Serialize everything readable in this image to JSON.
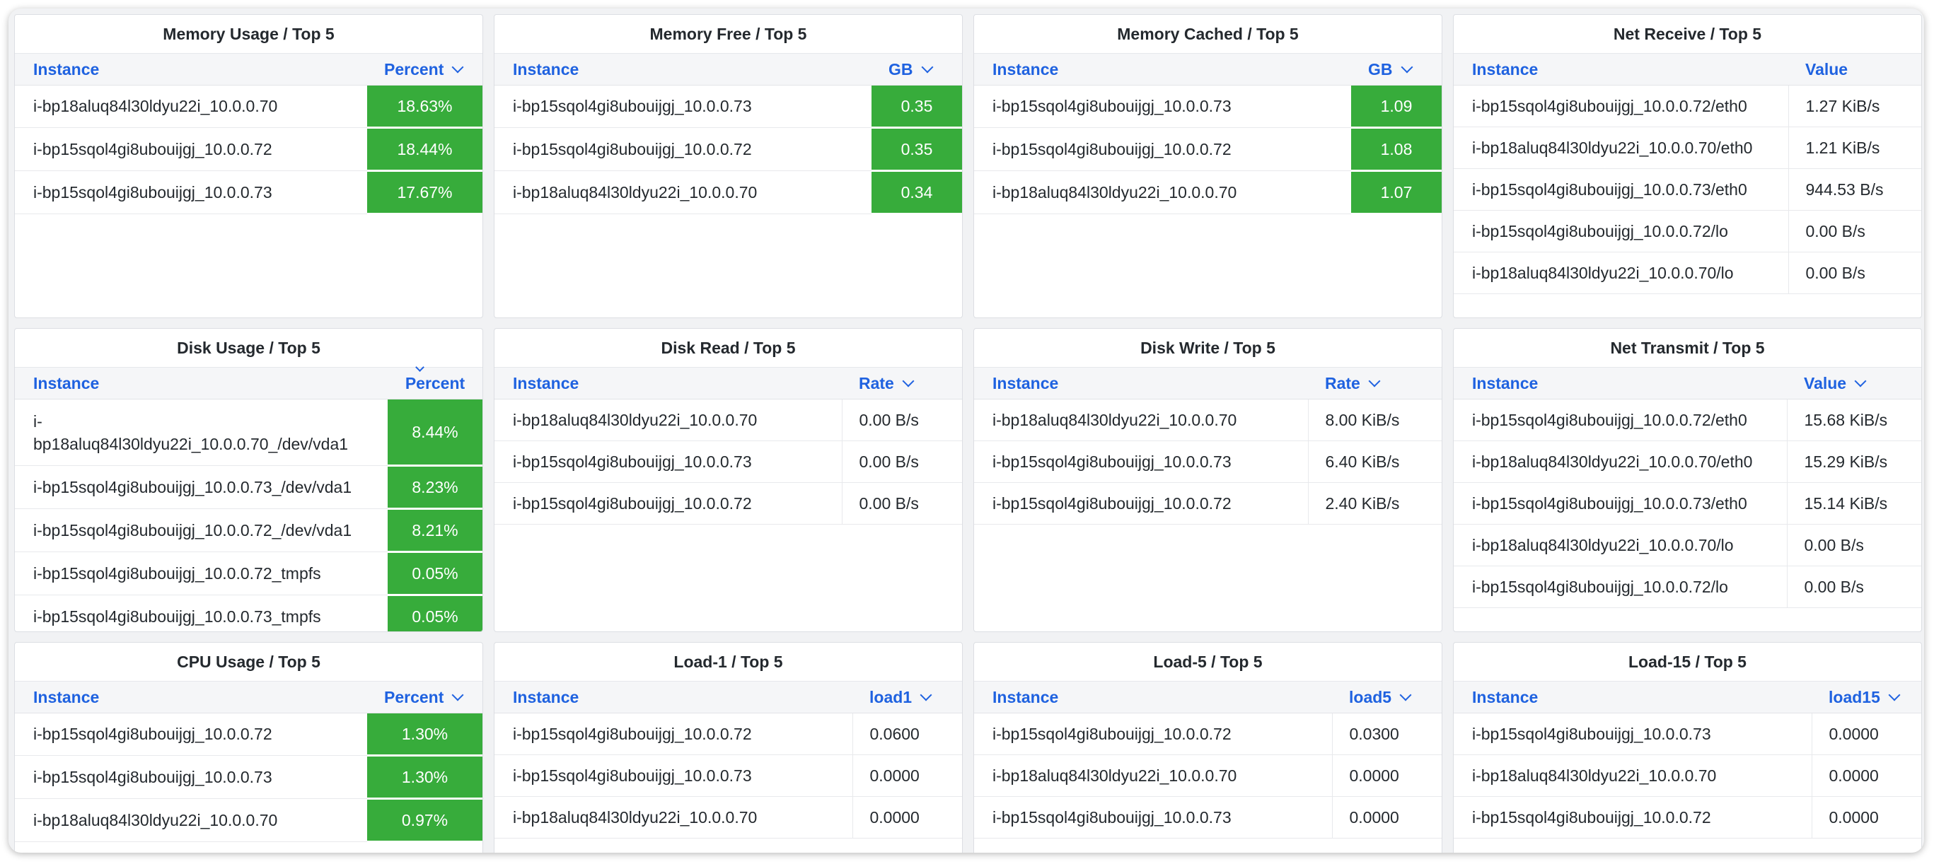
{
  "panels": [
    {
      "title": "Memory Usage / Top 5",
      "instance_header": "Instance",
      "value_header": "Percent",
      "sort": "down",
      "style": "green",
      "rows": [
        {
          "instance": "i-bp18aluq84l30ldyu22i_10.0.0.70",
          "value": "18.63%"
        },
        {
          "instance": "i-bp15sqol4gi8ubouijgj_10.0.0.72",
          "value": "18.44%"
        },
        {
          "instance": "i-bp15sqol4gi8ubouijgj_10.0.0.73",
          "value": "17.67%"
        }
      ]
    },
    {
      "title": "Memory Free / Top 5",
      "instance_header": "Instance",
      "value_header": "GB",
      "sort": "down",
      "style": "green",
      "rows": [
        {
          "instance": "i-bp15sqol4gi8ubouijgj_10.0.0.73",
          "value": "0.35"
        },
        {
          "instance": "i-bp15sqol4gi8ubouijgj_10.0.0.72",
          "value": "0.35"
        },
        {
          "instance": "i-bp18aluq84l30ldyu22i_10.0.0.70",
          "value": "0.34"
        }
      ]
    },
    {
      "title": "Memory Cached / Top 5",
      "instance_header": "Instance",
      "value_header": "GB",
      "sort": "down",
      "style": "green",
      "rows": [
        {
          "instance": "i-bp15sqol4gi8ubouijgj_10.0.0.73",
          "value": "1.09"
        },
        {
          "instance": "i-bp15sqol4gi8ubouijgj_10.0.0.72",
          "value": "1.08"
        },
        {
          "instance": "i-bp18aluq84l30ldyu22i_10.0.0.70",
          "value": "1.07"
        }
      ]
    },
    {
      "title": "Net Receive / Top 5",
      "instance_header": "Instance",
      "value_header": "Value",
      "sort": "none",
      "style": "plain",
      "rows": [
        {
          "instance": "i-bp15sqol4gi8ubouijgj_10.0.0.72/eth0",
          "value": "1.27 KiB/s"
        },
        {
          "instance": "i-bp18aluq84l30ldyu22i_10.0.0.70/eth0",
          "value": "1.21 KiB/s"
        },
        {
          "instance": "i-bp15sqol4gi8ubouijgj_10.0.0.73/eth0",
          "value": "944.53 B/s"
        },
        {
          "instance": "i-bp15sqol4gi8ubouijgj_10.0.0.72/lo",
          "value": "0.00 B/s"
        },
        {
          "instance": "i-bp18aluq84l30ldyu22i_10.0.0.70/lo",
          "value": "0.00 B/s"
        }
      ]
    },
    {
      "title": "Disk Usage / Top 5",
      "instance_header": "Instance",
      "value_header": "Percent",
      "sort": "below",
      "style": "green",
      "rows": [
        {
          "instance": "i-bp18aluq84l30ldyu22i_10.0.0.70_/dev/vda1",
          "value": "8.44%",
          "tall": true
        },
        {
          "instance": "i-bp15sqol4gi8ubouijgj_10.0.0.73_/dev/vda1",
          "value": "8.23%"
        },
        {
          "instance": "i-bp15sqol4gi8ubouijgj_10.0.0.72_/dev/vda1",
          "value": "8.21%"
        },
        {
          "instance": "i-bp15sqol4gi8ubouijgj_10.0.0.72_tmpfs",
          "value": "0.05%"
        },
        {
          "instance": "i-bp15sqol4gi8ubouijgj_10.0.0.73_tmpfs",
          "value": "0.05%"
        }
      ]
    },
    {
      "title": "Disk Read / Top 5",
      "instance_header": "Instance",
      "value_header": "Rate",
      "sort": "down",
      "style": "plain",
      "rows": [
        {
          "instance": "i-bp18aluq84l30ldyu22i_10.0.0.70",
          "value": "0.00 B/s"
        },
        {
          "instance": "i-bp15sqol4gi8ubouijgj_10.0.0.73",
          "value": "0.00 B/s"
        },
        {
          "instance": "i-bp15sqol4gi8ubouijgj_10.0.0.72",
          "value": "0.00 B/s"
        }
      ]
    },
    {
      "title": "Disk Write / Top 5",
      "instance_header": "Instance",
      "value_header": "Rate",
      "sort": "down",
      "style": "plain",
      "rows": [
        {
          "instance": "i-bp18aluq84l30ldyu22i_10.0.0.70",
          "value": "8.00 KiB/s"
        },
        {
          "instance": "i-bp15sqol4gi8ubouijgj_10.0.0.73",
          "value": "6.40 KiB/s"
        },
        {
          "instance": "i-bp15sqol4gi8ubouijgj_10.0.0.72",
          "value": "2.40 KiB/s"
        }
      ]
    },
    {
      "title": "Net Transmit / Top 5",
      "instance_header": "Instance",
      "value_header": "Value",
      "sort": "down",
      "style": "plain",
      "rows": [
        {
          "instance": "i-bp15sqol4gi8ubouijgj_10.0.0.72/eth0",
          "value": "15.68 KiB/s"
        },
        {
          "instance": "i-bp18aluq84l30ldyu22i_10.0.0.70/eth0",
          "value": "15.29 KiB/s"
        },
        {
          "instance": "i-bp15sqol4gi8ubouijgj_10.0.0.73/eth0",
          "value": "15.14 KiB/s"
        },
        {
          "instance": "i-bp18aluq84l30ldyu22i_10.0.0.70/lo",
          "value": "0.00 B/s"
        },
        {
          "instance": "i-bp15sqol4gi8ubouijgj_10.0.0.72/lo",
          "value": "0.00 B/s"
        }
      ]
    },
    {
      "title": "CPU Usage / Top 5",
      "instance_header": "Instance",
      "value_header": "Percent",
      "sort": "down",
      "style": "green",
      "rows": [
        {
          "instance": "i-bp15sqol4gi8ubouijgj_10.0.0.72",
          "value": "1.30%"
        },
        {
          "instance": "i-bp15sqol4gi8ubouijgj_10.0.0.73",
          "value": "1.30%"
        },
        {
          "instance": "i-bp18aluq84l30ldyu22i_10.0.0.70",
          "value": "0.97%"
        }
      ]
    },
    {
      "title": "Load-1 / Top 5",
      "instance_header": "Instance",
      "value_header": "load1",
      "sort": "down",
      "style": "plain",
      "rows": [
        {
          "instance": "i-bp15sqol4gi8ubouijgj_10.0.0.72",
          "value": "0.0600"
        },
        {
          "instance": "i-bp15sqol4gi8ubouijgj_10.0.0.73",
          "value": "0.0000"
        },
        {
          "instance": "i-bp18aluq84l30ldyu22i_10.0.0.70",
          "value": "0.0000"
        }
      ]
    },
    {
      "title": "Load-5 / Top 5",
      "instance_header": "Instance",
      "value_header": "load5",
      "sort": "down",
      "style": "plain",
      "rows": [
        {
          "instance": "i-bp15sqol4gi8ubouijgj_10.0.0.72",
          "value": "0.0300"
        },
        {
          "instance": "i-bp18aluq84l30ldyu22i_10.0.0.70",
          "value": "0.0000"
        },
        {
          "instance": "i-bp15sqol4gi8ubouijgj_10.0.0.73",
          "value": "0.0000"
        }
      ]
    },
    {
      "title": "Load-15 / Top 5",
      "instance_header": "Instance",
      "value_header": "load15",
      "sort": "down",
      "style": "plain",
      "rows": [
        {
          "instance": "i-bp15sqol4gi8ubouijgj_10.0.0.73",
          "value": "0.0000"
        },
        {
          "instance": "i-bp18aluq84l30ldyu22i_10.0.0.70",
          "value": "0.0000"
        },
        {
          "instance": "i-bp15sqol4gi8ubouijgj_10.0.0.72",
          "value": "0.0000"
        }
      ]
    }
  ],
  "colors": {
    "header_link": "#1f62e0",
    "value_green": "#37ac3b"
  },
  "icons": {
    "sort": "chevron-down-icon"
  }
}
